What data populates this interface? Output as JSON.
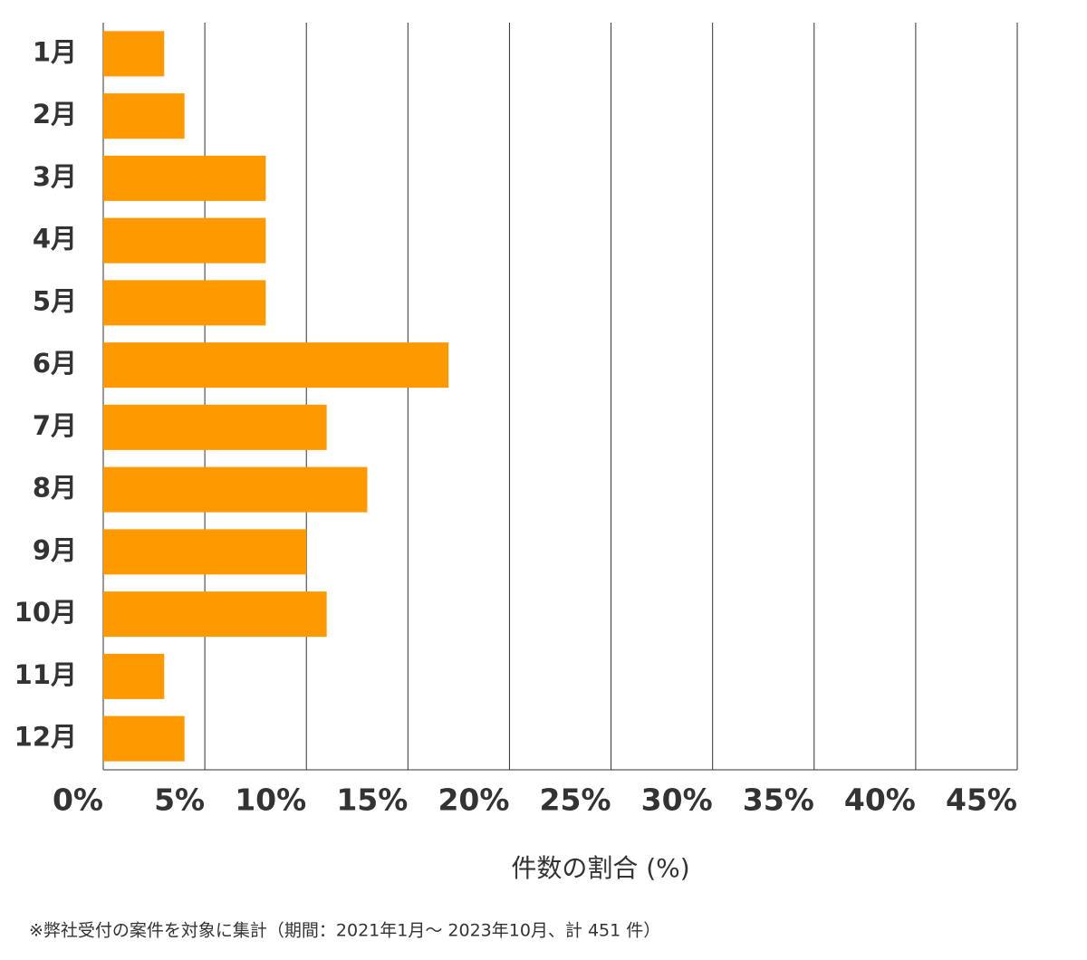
{
  "chart_data": {
    "type": "bar",
    "orientation": "horizontal",
    "categories": [
      "1月",
      "2月",
      "3月",
      "4月",
      "5月",
      "6月",
      "7月",
      "8月",
      "9月",
      "10月",
      "11月",
      "12月"
    ],
    "values": [
      3,
      4,
      8,
      8,
      8,
      17,
      11,
      13,
      10,
      11,
      3,
      4
    ],
    "color": "#ff9900",
    "xlim": [
      0,
      45
    ],
    "xticks": [
      {
        "value": 0,
        "label": "0%"
      },
      {
        "value": 5,
        "label": "5%"
      },
      {
        "value": 10,
        "label": "10%"
      },
      {
        "value": 15,
        "label": "15%"
      },
      {
        "value": 20,
        "label": "20%"
      },
      {
        "value": 25,
        "label": "25%"
      },
      {
        "value": 30,
        "label": "30%"
      },
      {
        "value": 35,
        "label": "35%"
      },
      {
        "value": 40,
        "label": "40%"
      },
      {
        "value": 45,
        "label": "45%"
      }
    ],
    "grid": true,
    "x_label": "件数の割合 (%)",
    "footnote": "※弊社受付の案件を対象に集計（期間：2021年1月～ 2023年10月、計 451 件）"
  }
}
